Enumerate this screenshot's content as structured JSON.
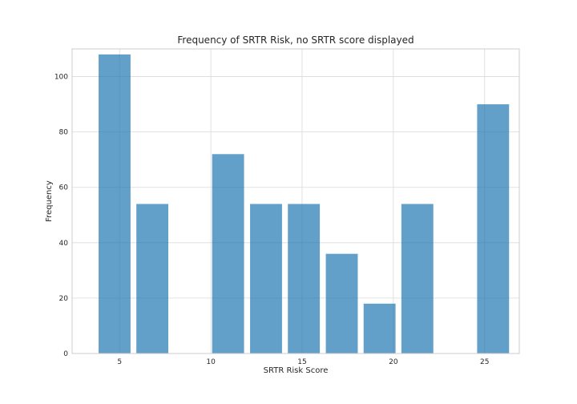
{
  "chart_data": {
    "type": "bar",
    "title": "Frequency of SRTR Risk, no SRTR score displayed",
    "xlabel": "SRTR Risk Score",
    "ylabel": "Frequency",
    "xlim": [
      2.4,
      26.9
    ],
    "ylim": [
      0,
      110
    ],
    "x_ticks": [
      5,
      10,
      15,
      20,
      25
    ],
    "y_ticks": [
      0,
      20,
      40,
      60,
      80,
      100
    ],
    "grid": true,
    "bar_color": "#1f77b4",
    "bars": [
      {
        "x_start": 3.85,
        "x_end": 5.6,
        "value": 108
      },
      {
        "x_start": 5.92,
        "x_end": 7.67,
        "value": 54
      },
      {
        "x_start": 10.07,
        "x_end": 11.82,
        "value": 72
      },
      {
        "x_start": 12.15,
        "x_end": 13.9,
        "value": 54
      },
      {
        "x_start": 14.22,
        "x_end": 15.97,
        "value": 54
      },
      {
        "x_start": 16.3,
        "x_end": 18.05,
        "value": 36
      },
      {
        "x_start": 18.37,
        "x_end": 20.12,
        "value": 18
      },
      {
        "x_start": 20.44,
        "x_end": 22.19,
        "value": 54
      },
      {
        "x_start": 24.59,
        "x_end": 26.34,
        "value": 90
      }
    ]
  }
}
